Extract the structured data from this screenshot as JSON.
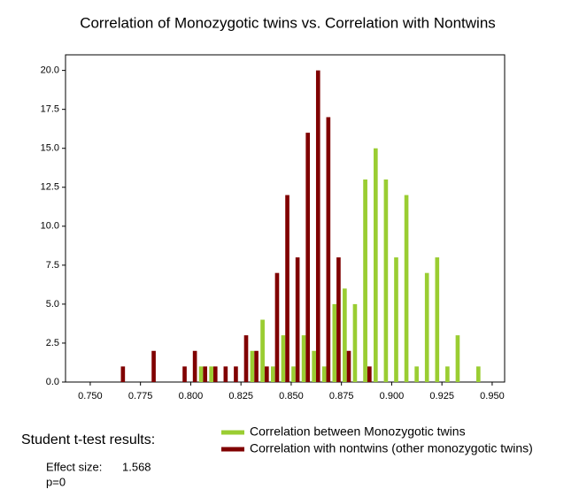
{
  "chart_data": {
    "type": "histogram",
    "title": "Correlation of Monozygotic twins vs. Correlation with Nontwins",
    "bins": [
      0.7627,
      0.7678,
      0.7729,
      0.778,
      0.7831,
      0.7883,
      0.7934,
      0.7985,
      0.8036,
      0.8087,
      0.8138,
      0.8189,
      0.824,
      0.8291,
      0.8342,
      0.8394,
      0.8445,
      0.8496,
      0.8547,
      0.8598,
      0.8649,
      0.87,
      0.8751,
      0.8802,
      0.8853,
      0.8905,
      0.8956,
      0.9007,
      0.9058,
      0.9109,
      0.916,
      0.9211,
      0.9262,
      0.9313,
      0.9364,
      0.9416,
      0.9467
    ],
    "series": [
      {
        "name": "Correlation between Monozygotic twins",
        "color": "#9acd32",
        "values": [
          0,
          0,
          0,
          0,
          0,
          0,
          0,
          0,
          1,
          1,
          0,
          0,
          0,
          2,
          4,
          1,
          3,
          1,
          3,
          2,
          1,
          5,
          6,
          5,
          13,
          15,
          13,
          8,
          12,
          1,
          7,
          8,
          1,
          3,
          0,
          1
        ]
      },
      {
        "name": "Correlation with nontwins (other monozygotic twins)",
        "color": "#800000",
        "values": [
          1,
          0,
          0,
          2,
          0,
          0,
          1,
          2,
          1,
          1,
          1,
          1,
          3,
          2,
          1,
          7,
          12,
          8,
          16,
          20,
          17,
          8,
          2,
          0,
          1,
          0,
          0,
          0,
          0,
          0,
          0,
          0,
          0,
          0,
          0,
          0
        ]
      }
    ],
    "xlim": [
      0.7377,
      0.9562
    ],
    "ylim": [
      0,
      21
    ],
    "xticks": [
      {
        "value": 0.75,
        "label": "0.750"
      },
      {
        "value": 0.775,
        "label": "0.775"
      },
      {
        "value": 0.8,
        "label": "0.800"
      },
      {
        "value": 0.825,
        "label": "0.825"
      },
      {
        "value": 0.85,
        "label": "0.850"
      },
      {
        "value": 0.875,
        "label": "0.875"
      },
      {
        "value": 0.9,
        "label": "0.900"
      },
      {
        "value": 0.925,
        "label": "0.925"
      },
      {
        "value": 0.95,
        "label": "0.950"
      }
    ],
    "yticks": [
      {
        "value": 0,
        "label": "0.0"
      },
      2.5,
      {
        "value": 5,
        "label": "5.0"
      },
      7.5,
      {
        "value": 10,
        "label": "10.0"
      },
      12.5,
      {
        "value": 15,
        "label": "15.0"
      },
      17.5,
      {
        "value": 20,
        "label": "20.0"
      }
    ],
    "grid": false,
    "legend": "below",
    "stats": {
      "heading": "Student t-test results:",
      "effect_size_label": "Effect size:",
      "effect_size": 1.568,
      "p_text": "p=0"
    }
  }
}
